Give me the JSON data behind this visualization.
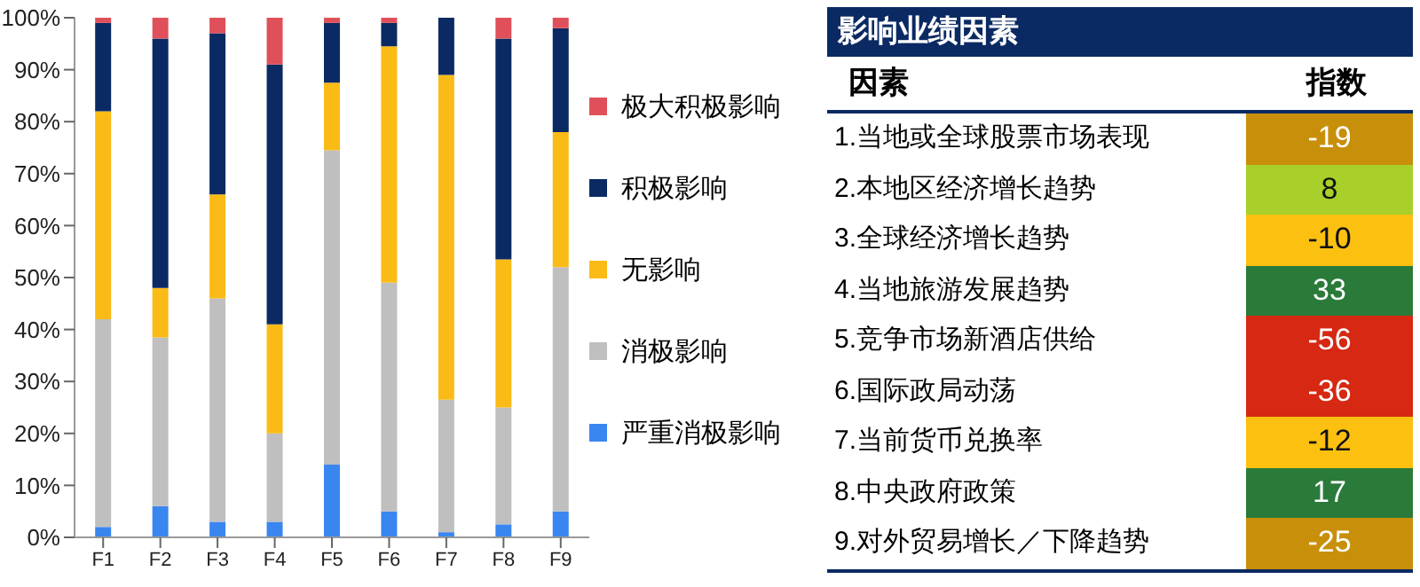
{
  "chart_data": [
    {
      "type": "bar",
      "stacked": true,
      "categories": [
        "F1",
        "F2",
        "F3",
        "F4",
        "F5",
        "F6",
        "F7",
        "F8",
        "F9"
      ],
      "series": [
        {
          "name": "严重消极影响",
          "color": "#3a86f0",
          "values": [
            2,
            6,
            3,
            3,
            14,
            5,
            1,
            2.5,
            5
          ]
        },
        {
          "name": "消极影响",
          "color": "#bfbfbf",
          "values": [
            40,
            32.5,
            43,
            17,
            60.5,
            44,
            25.5,
            22.5,
            47
          ]
        },
        {
          "name": "无影响",
          "color": "#fbbb16",
          "values": [
            40,
            9.5,
            20,
            21,
            13,
            45.5,
            62.5,
            28.5,
            26
          ]
        },
        {
          "name": "积极影响",
          "color": "#0b2a63",
          "values": [
            17,
            48,
            31,
            50,
            11.5,
            4.5,
            11,
            42.5,
            20
          ]
        },
        {
          "name": "极大积极影响",
          "color": "#e0505a",
          "values": [
            1,
            4,
            3,
            9,
            1,
            1,
            0,
            4,
            2
          ]
        }
      ],
      "ylim": [
        0,
        100
      ],
      "yticks": [
        {
          "value": 0,
          "label": "0%"
        },
        {
          "value": 10,
          "label": "10%"
        },
        {
          "value": 20,
          "label": "20%"
        },
        {
          "value": 30,
          "label": "30%"
        },
        {
          "value": 40,
          "label": "40%"
        },
        {
          "value": 50,
          "label": "50%"
        },
        {
          "value": 60,
          "label": "60%"
        },
        {
          "value": 70,
          "label": "70%"
        },
        {
          "value": 80,
          "label": "80%"
        },
        {
          "value": 90,
          "label": "90%"
        },
        {
          "value": 100,
          "label": "100%"
        }
      ],
      "legend": "right"
    },
    {
      "type": "heatmap",
      "title": "影响业绩因素",
      "ylabel": "因素",
      "categories": [
        "指数"
      ],
      "y_categories": [
        "1.当地或全球股票市场表现",
        "2.本地区经济增长趋势",
        "3.全球经济增长趋势",
        "4.当地旅游发展趋势",
        "5.竞争市场新酒店供给",
        "6.国际政局动荡",
        "7.当前货币兑换率",
        "8.中央政府政策",
        "9.对外贸易增长／下降趋势"
      ],
      "cells": [
        [
          -19
        ],
        [
          8
        ],
        [
          -10
        ],
        [
          33
        ],
        [
          -56
        ],
        [
          -36
        ],
        [
          -12
        ],
        [
          17
        ],
        [
          -25
        ]
      ],
      "colors": [
        "#c8900a",
        "#a8cf2a",
        "#fcc010",
        "#2a7a3a",
        "#d62812",
        "#d62812",
        "#fcc010",
        "#2a7a3a",
        "#c8900a"
      ],
      "data_labels": true
    }
  ]
}
